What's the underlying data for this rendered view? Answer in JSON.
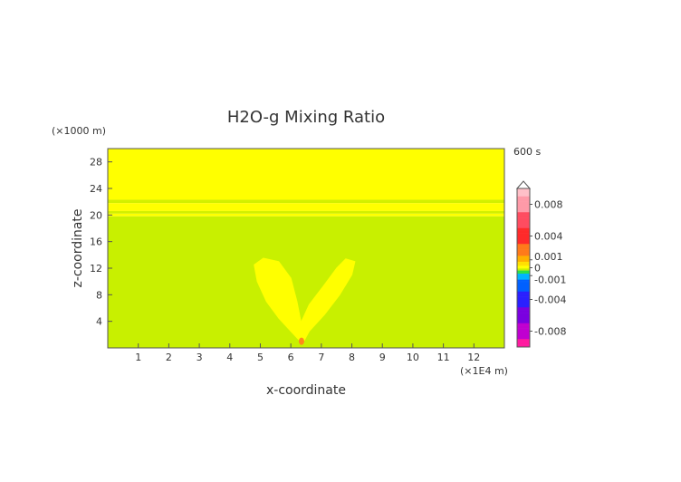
{
  "chart_data": {
    "type": "heatmap",
    "title": "H2O-g Mixing Ratio",
    "xlabel": "x-coordinate",
    "ylabel": "z-coordinate",
    "x_unit": "(×1E4 m)",
    "y_unit": "(×1000 m)",
    "time_label": "600 s",
    "xlim": [
      0,
      13
    ],
    "ylim": [
      0,
      30
    ],
    "x_ticks": [
      1,
      2,
      3,
      4,
      5,
      6,
      7,
      8,
      9,
      10,
      11,
      12
    ],
    "y_ticks": [
      4,
      8,
      12,
      16,
      20,
      24,
      28
    ],
    "colorbar": {
      "range": [
        -0.01,
        0.01
      ],
      "labels": [
        "0.008",
        "0.004",
        "0.001",
        "0",
        "-0.001",
        "-0.004",
        "-0.008"
      ],
      "label_values": [
        0.008,
        0.004,
        0.001,
        0,
        -0.001,
        -0.004,
        -0.008
      ],
      "stops": [
        {
          "v": 0.01,
          "color": "#ffc0c8"
        },
        {
          "v": 0.008,
          "color": "#ff9aa8"
        },
        {
          "v": 0.006,
          "color": "#ff4c60"
        },
        {
          "v": 0.004,
          "color": "#ff2a2a"
        },
        {
          "v": 0.002,
          "color": "#ff7a1a"
        },
        {
          "v": 0.001,
          "color": "#ffb000"
        },
        {
          "v": 0.0005,
          "color": "#ffe000"
        },
        {
          "v": 0.0,
          "color": "#ffff00"
        },
        {
          "v": -0.0002,
          "color": "#c8f000"
        },
        {
          "v": -0.0005,
          "color": "#2adf4a"
        },
        {
          "v": -0.001,
          "color": "#00b4ff"
        },
        {
          "v": -0.002,
          "color": "#0060ff"
        },
        {
          "v": -0.004,
          "color": "#2a20ff"
        },
        {
          "v": -0.006,
          "color": "#7a00e0"
        },
        {
          "v": -0.008,
          "color": "#c000d0"
        },
        {
          "v": -0.01,
          "color": "#ff1aa0"
        }
      ]
    },
    "regions": [
      {
        "name": "upper layer",
        "z_range": [
          22.3,
          30
        ],
        "color": "#ffff00"
      },
      {
        "name": "band",
        "z_range": [
          21.8,
          22.3
        ],
        "color": "#d2f000"
      },
      {
        "name": "band",
        "z_range": [
          20.6,
          21.8
        ],
        "color": "#ffff00"
      },
      {
        "name": "band",
        "z_range": [
          20.2,
          20.6
        ],
        "color": "#d2f000"
      },
      {
        "name": "band",
        "z_range": [
          19.8,
          20.2
        ],
        "color": "#ffff00"
      },
      {
        "name": "lower layer",
        "z_range": [
          0,
          19.8
        ],
        "color": "#c8f000"
      }
    ],
    "plumes": [
      {
        "name": "left lobe",
        "color": "#ffff00",
        "path": [
          [
            6.35,
            0.8
          ],
          [
            6.0,
            2.5
          ],
          [
            5.6,
            4.5
          ],
          [
            5.2,
            7.0
          ],
          [
            4.9,
            10.0
          ],
          [
            4.8,
            12.5
          ],
          [
            5.1,
            13.5
          ],
          [
            5.6,
            13.0
          ],
          [
            6.0,
            10.5
          ],
          [
            6.2,
            7.0
          ],
          [
            6.35,
            3.5
          ],
          [
            6.45,
            1.2
          ]
        ]
      },
      {
        "name": "right lobe",
        "color": "#ffff00",
        "path": [
          [
            6.35,
            0.8
          ],
          [
            6.3,
            3.5
          ],
          [
            6.6,
            6.5
          ],
          [
            7.1,
            9.5
          ],
          [
            7.5,
            12.0
          ],
          [
            7.8,
            13.4
          ],
          [
            8.1,
            13.0
          ],
          [
            8.0,
            11.0
          ],
          [
            7.6,
            8.0
          ],
          [
            7.1,
            5.0
          ],
          [
            6.6,
            2.5
          ],
          [
            6.45,
            1.2
          ]
        ]
      },
      {
        "name": "source",
        "color": "#ff8a1a",
        "ellipse": {
          "cx": 6.35,
          "cy": 1.0,
          "rx": 0.09,
          "ry": 0.55
        }
      }
    ]
  }
}
